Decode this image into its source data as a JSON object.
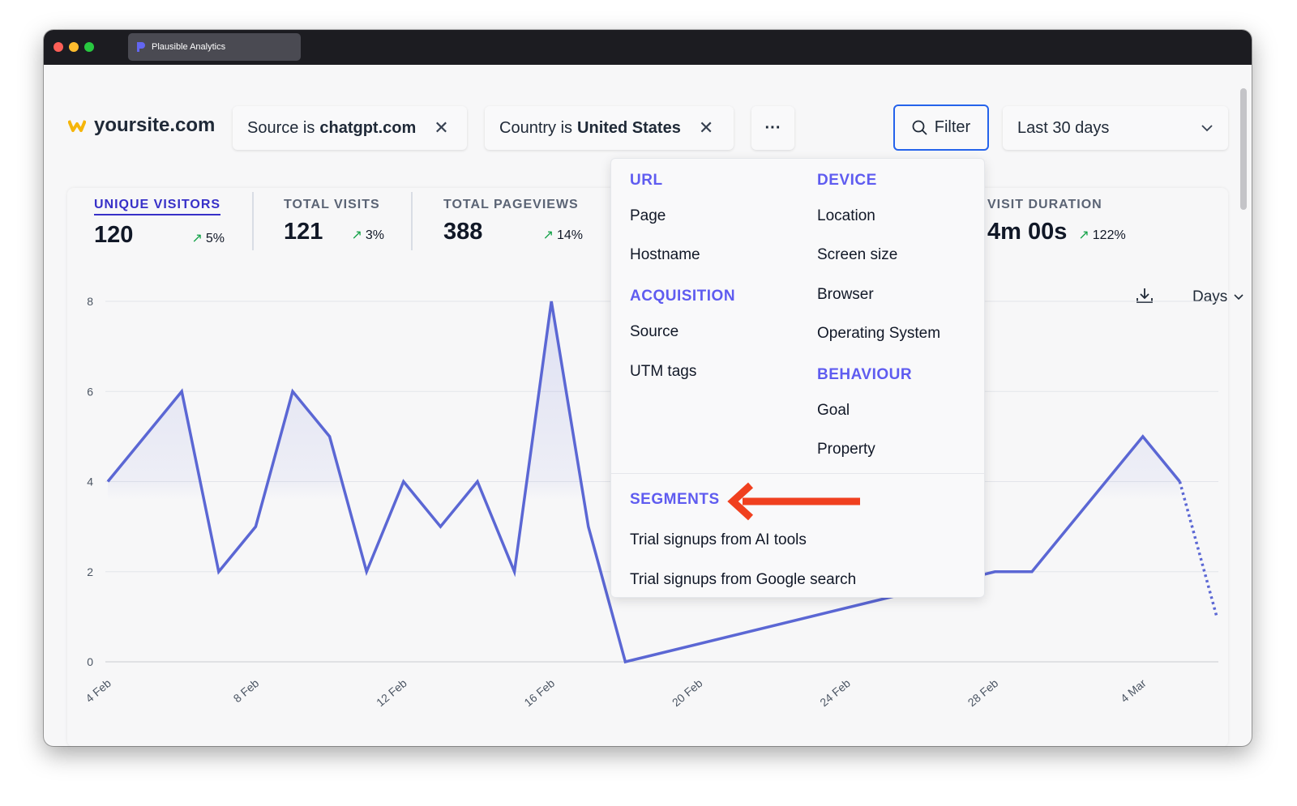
{
  "browser": {
    "tab_title": "Plausible Analytics"
  },
  "header": {
    "site": "yoursite.com",
    "filters": [
      {
        "prefix": "Source is",
        "value": "chatgpt.com"
      },
      {
        "prefix": "Country is",
        "value": "United States"
      }
    ],
    "more_label": "···",
    "filter_label": "Filter",
    "date_range": "Last 30 days"
  },
  "metrics": [
    {
      "label": "UNIQUE VISITORS",
      "value": "120",
      "change": "5%"
    },
    {
      "label": "TOTAL VISITS",
      "value": "121",
      "change": "3%"
    },
    {
      "label": "TOTAL PAGEVIEWS",
      "value": "388",
      "change": "14%"
    },
    {
      "label": "VISIT DURATION",
      "value": "4m 00s",
      "change": "122%"
    }
  ],
  "interval": "Days",
  "menu": {
    "url": {
      "title": "URL",
      "items": [
        "Page",
        "Hostname"
      ]
    },
    "acquisition": {
      "title": "ACQUISITION",
      "items": [
        "Source",
        "UTM tags"
      ]
    },
    "device": {
      "title": "DEVICE",
      "items": [
        "Location",
        "Screen size",
        "Browser",
        "Operating System"
      ]
    },
    "behaviour": {
      "title": "BEHAVIOUR",
      "items": [
        "Goal",
        "Property"
      ]
    },
    "segments": {
      "title": "SEGMENTS",
      "items": [
        "Trial signups from AI tools",
        "Trial signups from Google search"
      ]
    }
  },
  "colors": {
    "line": "#5b67d4",
    "accent": "#5f5cf0",
    "arrow": "#f0401f",
    "positive": "#16a34a"
  },
  "chart_data": {
    "type": "line",
    "x": [
      "4 Feb",
      "5 Feb",
      "6 Feb",
      "7 Feb",
      "8 Feb",
      "9 Feb",
      "10 Feb",
      "11 Feb",
      "12 Feb",
      "13 Feb",
      "14 Feb",
      "15 Feb",
      "16 Feb",
      "17 Feb",
      "18 Feb",
      "19 Feb",
      "20 Feb",
      "21 Feb",
      "22 Feb",
      "23 Feb",
      "24 Feb",
      "25 Feb",
      "26 Feb",
      "27 Feb",
      "28 Feb",
      "1 Mar",
      "2 Mar",
      "3 Mar",
      "4 Mar",
      "5 Mar",
      "6 Mar"
    ],
    "series": [
      {
        "values": [
          4,
          5,
          6,
          2,
          3,
          6,
          5,
          2,
          4,
          3,
          4,
          2,
          8,
          3,
          0,
          null,
          null,
          null,
          null,
          null,
          null,
          null,
          null,
          null,
          2,
          2,
          3,
          4,
          5,
          4,
          1
        ]
      }
    ],
    "x_tick_labels": [
      "4 Feb",
      "8 Feb",
      "12 Feb",
      "16 Feb",
      "20 Feb",
      "24 Feb",
      "28 Feb",
      "4 Mar"
    ],
    "y_ticks": [
      0,
      2,
      4,
      6,
      8
    ],
    "ylim": [
      0,
      8
    ],
    "grid": true,
    "last_segment": "dotted"
  }
}
